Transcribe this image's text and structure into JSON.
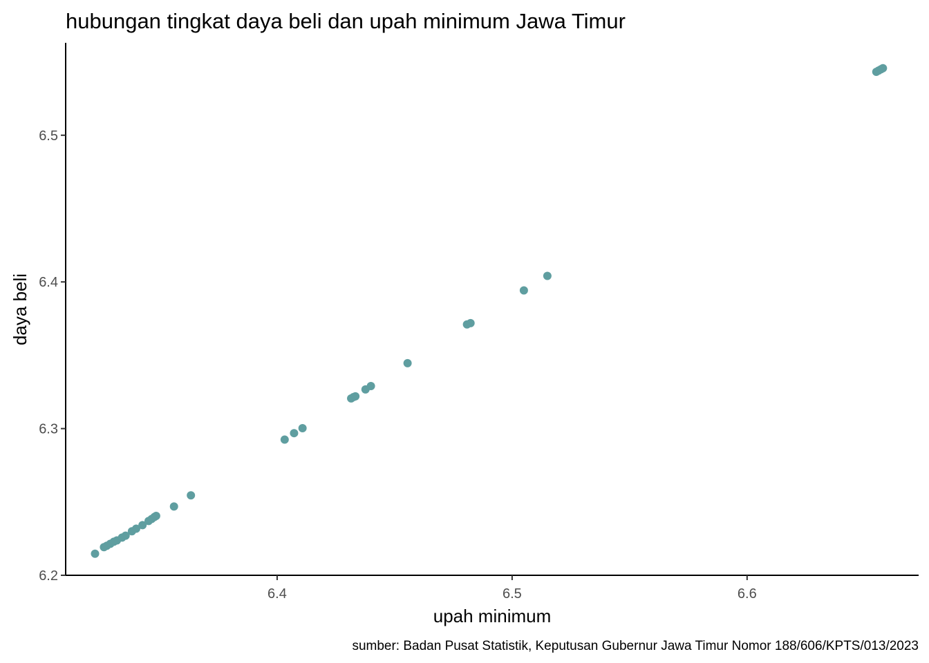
{
  "chart_data": {
    "type": "scatter",
    "title": "hubungan tingkat daya beli dan upah minimum Jawa Timur",
    "xlabel": "upah minimum",
    "ylabel": "daya beli",
    "caption": "sumber: Badan Pusat Statistik, Keputusan Gubernur Jawa Timur Nomor 188/606/KPTS/013/2023",
    "xlim": [
      6.31,
      6.673
    ],
    "ylim": [
      6.2,
      6.563
    ],
    "x_ticks": [
      "6.4",
      "6.5",
      "6.6"
    ],
    "y_ticks": [
      "6.2",
      "6.3",
      "6.4",
      "6.5"
    ],
    "grid": false,
    "point_color": "#5f9ea0",
    "points": [
      {
        "x": 6.3225,
        "y": 6.2147
      },
      {
        "x": 6.3263,
        "y": 6.2192
      },
      {
        "x": 6.3275,
        "y": 6.2201
      },
      {
        "x": 6.329,
        "y": 6.2215
      },
      {
        "x": 6.3305,
        "y": 6.2229
      },
      {
        "x": 6.3318,
        "y": 6.2238
      },
      {
        "x": 6.334,
        "y": 6.2257
      },
      {
        "x": 6.3355,
        "y": 6.227
      },
      {
        "x": 6.3382,
        "y": 6.23
      },
      {
        "x": 6.34,
        "y": 6.2318
      },
      {
        "x": 6.3427,
        "y": 6.2342
      },
      {
        "x": 6.3453,
        "y": 6.237
      },
      {
        "x": 6.3466,
        "y": 6.2384
      },
      {
        "x": 6.3478,
        "y": 6.2398
      },
      {
        "x": 6.3485,
        "y": 6.2405
      },
      {
        "x": 6.3561,
        "y": 6.2469
      },
      {
        "x": 6.3633,
        "y": 6.2545
      },
      {
        "x": 6.4032,
        "y": 6.2925
      },
      {
        "x": 6.4072,
        "y": 6.2969
      },
      {
        "x": 6.4108,
        "y": 6.3003
      },
      {
        "x": 6.4315,
        "y": 6.3206
      },
      {
        "x": 6.4325,
        "y": 6.3215
      },
      {
        "x": 6.4333,
        "y": 6.322
      },
      {
        "x": 6.4376,
        "y": 6.3267
      },
      {
        "x": 6.4399,
        "y": 6.329
      },
      {
        "x": 6.4555,
        "y": 6.3446
      },
      {
        "x": 6.4808,
        "y": 6.371
      },
      {
        "x": 6.4823,
        "y": 6.3719
      },
      {
        "x": 6.505,
        "y": 6.3942
      },
      {
        "x": 6.515,
        "y": 6.4041
      },
      {
        "x": 6.655,
        "y": 6.5432
      },
      {
        "x": 6.656,
        "y": 6.5441
      },
      {
        "x": 6.657,
        "y": 6.545
      },
      {
        "x": 6.6578,
        "y": 6.5457
      }
    ]
  }
}
